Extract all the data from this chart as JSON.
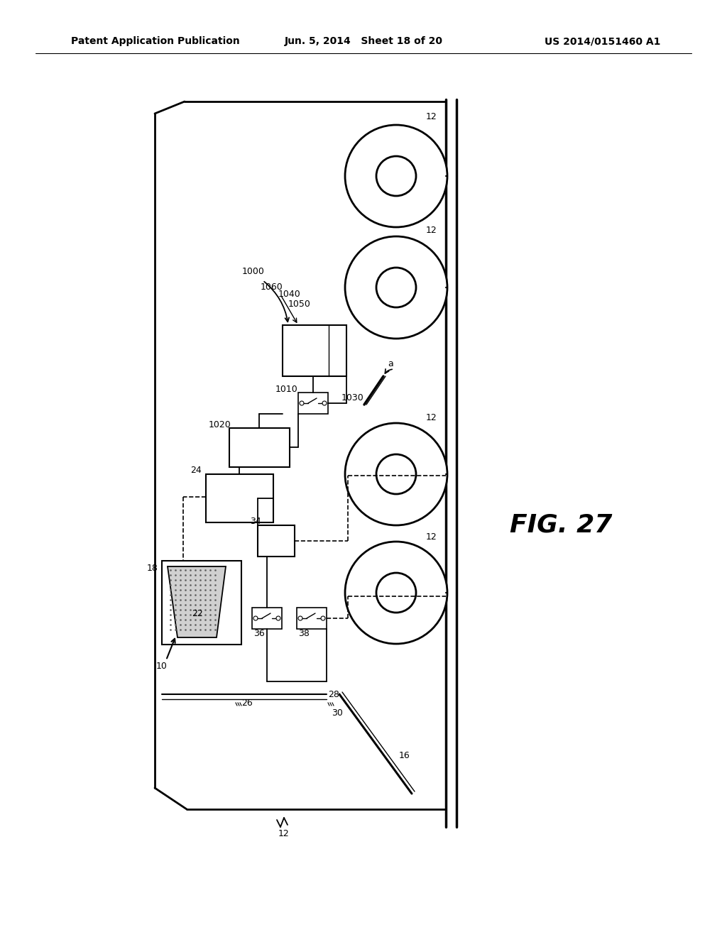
{
  "header_left": "Patent Application Publication",
  "header_center": "Jun. 5, 2014   Sheet 18 of 20",
  "header_right": "US 2014/0151460 A1",
  "fig_label": "FIG. 27",
  "bg": "#ffffff",
  "lc": "#000000"
}
